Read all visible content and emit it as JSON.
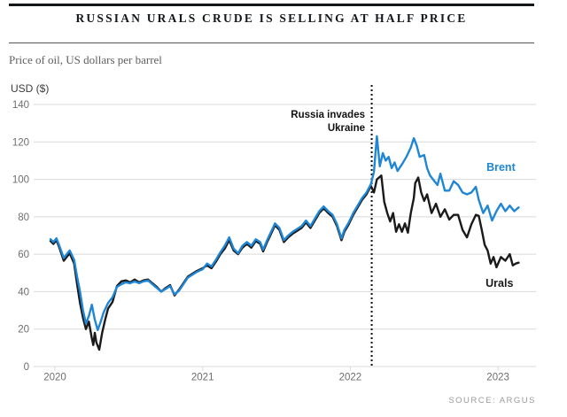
{
  "header": {
    "title": "RUSSIAN URALS CRUDE IS SELLING AT HALF PRICE",
    "subtitle": "Price of oil, US dollars per barrel"
  },
  "source": "SOURCE: ARGUS",
  "colors": {
    "brent_blue": "#1f86d6",
    "urals_black": "#1a1a1a",
    "grid": "#d9d9d9",
    "axis_text": "#6e6e6e",
    "annotation": "#111111",
    "title_text": "#14171a",
    "source_text": "#9b9b9b"
  },
  "chart_data": {
    "type": "line",
    "title": "Russian Urals crude is selling at half price",
    "xlabel": "",
    "ylabel": "USD ($)",
    "ylim": [
      0,
      140
    ],
    "yticks": [
      0,
      20,
      40,
      60,
      80,
      100,
      120,
      140
    ],
    "xticks": [
      {
        "t": 2020,
        "label": "2020"
      },
      {
        "t": 2021,
        "label": "2021"
      },
      {
        "t": 2022,
        "label": "2022"
      },
      {
        "t": 2023,
        "label": "2023"
      }
    ],
    "grid": true,
    "legend_position": "inline-labels",
    "annotation": {
      "line1": "Russia invades",
      "line2": "Ukraine",
      "t": 2022.145
    },
    "series": [
      {
        "name": "Urals",
        "color": "#1a1a1a",
        "label_pos": {
          "t": 2023.01,
          "v": 42.5
        },
        "points": [
          [
            2019.97,
            67
          ],
          [
            2019.99,
            65.5
          ],
          [
            2020.01,
            67.5
          ],
          [
            2020.03,
            63.5
          ],
          [
            2020.06,
            56.5
          ],
          [
            2020.08,
            58.5
          ],
          [
            2020.1,
            60.5
          ],
          [
            2020.13,
            55
          ],
          [
            2020.15,
            44
          ],
          [
            2020.17,
            34
          ],
          [
            2020.19,
            26
          ],
          [
            2020.21,
            20
          ],
          [
            2020.23,
            24
          ],
          [
            2020.25,
            15
          ],
          [
            2020.26,
            11.5
          ],
          [
            2020.27,
            18
          ],
          [
            2020.28,
            13
          ],
          [
            2020.3,
            9
          ],
          [
            2020.32,
            18
          ],
          [
            2020.34,
            25
          ],
          [
            2020.36,
            31
          ],
          [
            2020.39,
            34.5
          ],
          [
            2020.42,
            43
          ],
          [
            2020.45,
            45.5
          ],
          [
            2020.48,
            46
          ],
          [
            2020.51,
            45
          ],
          [
            2020.54,
            46.5
          ],
          [
            2020.57,
            45
          ],
          [
            2020.6,
            46
          ],
          [
            2020.63,
            46.5
          ],
          [
            2020.66,
            44.5
          ],
          [
            2020.69,
            42.5
          ],
          [
            2020.72,
            40
          ],
          [
            2020.75,
            42
          ],
          [
            2020.78,
            43.5
          ],
          [
            2020.81,
            38
          ],
          [
            2020.84,
            41
          ],
          [
            2020.87,
            44.5
          ],
          [
            2020.9,
            48
          ],
          [
            2020.93,
            49.5
          ],
          [
            2020.96,
            51
          ],
          [
            2021.0,
            52.5
          ],
          [
            2021.03,
            54
          ],
          [
            2021.06,
            52.5
          ],
          [
            2021.09,
            56
          ],
          [
            2021.12,
            60
          ],
          [
            2021.15,
            63
          ],
          [
            2021.18,
            67.5
          ],
          [
            2021.21,
            62
          ],
          [
            2021.24,
            60
          ],
          [
            2021.27,
            63.5
          ],
          [
            2021.3,
            65.5
          ],
          [
            2021.33,
            63.5
          ],
          [
            2021.36,
            67
          ],
          [
            2021.39,
            65.5
          ],
          [
            2021.41,
            61.5
          ],
          [
            2021.44,
            67
          ],
          [
            2021.47,
            72
          ],
          [
            2021.49,
            75.5
          ],
          [
            2021.52,
            73
          ],
          [
            2021.55,
            66.5
          ],
          [
            2021.58,
            69
          ],
          [
            2021.61,
            71
          ],
          [
            2021.64,
            72.5
          ],
          [
            2021.67,
            74
          ],
          [
            2021.7,
            77
          ],
          [
            2021.73,
            74
          ],
          [
            2021.76,
            78
          ],
          [
            2021.79,
            82
          ],
          [
            2021.82,
            84.5
          ],
          [
            2021.85,
            82
          ],
          [
            2021.88,
            80
          ],
          [
            2021.91,
            75
          ],
          [
            2021.94,
            67.5
          ],
          [
            2021.96,
            72
          ],
          [
            2021.99,
            76
          ],
          [
            2022.02,
            81
          ],
          [
            2022.05,
            85
          ],
          [
            2022.08,
            89
          ],
          [
            2022.11,
            92
          ],
          [
            2022.14,
            96.5
          ],
          [
            2022.16,
            93
          ],
          [
            2022.18,
            100
          ],
          [
            2022.21,
            102
          ],
          [
            2022.23,
            88
          ],
          [
            2022.25,
            82
          ],
          [
            2022.27,
            77.5
          ],
          [
            2022.29,
            82
          ],
          [
            2022.31,
            72
          ],
          [
            2022.33,
            76
          ],
          [
            2022.35,
            72
          ],
          [
            2022.37,
            76.5
          ],
          [
            2022.39,
            71.5
          ],
          [
            2022.41,
            82
          ],
          [
            2022.43,
            90
          ],
          [
            2022.44,
            98
          ],
          [
            2022.46,
            101
          ],
          [
            2022.48,
            93
          ],
          [
            2022.5,
            88.5
          ],
          [
            2022.52,
            92
          ],
          [
            2022.55,
            82
          ],
          [
            2022.58,
            87
          ],
          [
            2022.61,
            80
          ],
          [
            2022.64,
            84
          ],
          [
            2022.67,
            78.5
          ],
          [
            2022.7,
            81
          ],
          [
            2022.73,
            81
          ],
          [
            2022.76,
            73
          ],
          [
            2022.79,
            69
          ],
          [
            2022.82,
            76
          ],
          [
            2022.85,
            81
          ],
          [
            2022.87,
            80.5
          ],
          [
            2022.89,
            73
          ],
          [
            2022.91,
            65
          ],
          [
            2022.93,
            62
          ],
          [
            2022.95,
            55
          ],
          [
            2022.97,
            58.5
          ],
          [
            2022.99,
            53
          ],
          [
            2023.02,
            58.5
          ],
          [
            2023.05,
            56.5
          ],
          [
            2023.08,
            60
          ],
          [
            2023.1,
            54
          ],
          [
            2023.12,
            55
          ],
          [
            2023.14,
            55.5
          ]
        ]
      },
      {
        "name": "Brent",
        "color": "#1f86d6",
        "label_pos": {
          "t": 2023.02,
          "v": 104.5
        },
        "points": [
          [
            2019.97,
            68
          ],
          [
            2019.99,
            66.5
          ],
          [
            2020.01,
            68.5
          ],
          [
            2020.03,
            64.5
          ],
          [
            2020.06,
            58
          ],
          [
            2020.08,
            60
          ],
          [
            2020.1,
            62
          ],
          [
            2020.13,
            57
          ],
          [
            2020.15,
            48
          ],
          [
            2020.17,
            40
          ],
          [
            2020.19,
            30
          ],
          [
            2020.21,
            23
          ],
          [
            2020.23,
            27
          ],
          [
            2020.25,
            33
          ],
          [
            2020.27,
            25
          ],
          [
            2020.29,
            19.5
          ],
          [
            2020.31,
            24
          ],
          [
            2020.33,
            29
          ],
          [
            2020.36,
            34
          ],
          [
            2020.39,
            37
          ],
          [
            2020.42,
            42.5
          ],
          [
            2020.45,
            44
          ],
          [
            2020.48,
            45
          ],
          [
            2020.51,
            44.5
          ],
          [
            2020.54,
            45.5
          ],
          [
            2020.57,
            44.5
          ],
          [
            2020.6,
            45.5
          ],
          [
            2020.63,
            46
          ],
          [
            2020.66,
            44
          ],
          [
            2020.69,
            42
          ],
          [
            2020.72,
            40
          ],
          [
            2020.75,
            41.5
          ],
          [
            2020.78,
            43
          ],
          [
            2020.81,
            38.5
          ],
          [
            2020.84,
            40.5
          ],
          [
            2020.87,
            44
          ],
          [
            2020.9,
            47.5
          ],
          [
            2020.93,
            49
          ],
          [
            2020.96,
            50.5
          ],
          [
            2021.0,
            52
          ],
          [
            2021.03,
            55
          ],
          [
            2021.06,
            53.5
          ],
          [
            2021.09,
            57
          ],
          [
            2021.12,
            61
          ],
          [
            2021.15,
            64.5
          ],
          [
            2021.18,
            69
          ],
          [
            2021.21,
            63
          ],
          [
            2021.24,
            60.5
          ],
          [
            2021.27,
            64.5
          ],
          [
            2021.3,
            66.5
          ],
          [
            2021.33,
            64.5
          ],
          [
            2021.36,
            68
          ],
          [
            2021.39,
            66.5
          ],
          [
            2021.41,
            62.5
          ],
          [
            2021.44,
            68
          ],
          [
            2021.47,
            73
          ],
          [
            2021.49,
            76.5
          ],
          [
            2021.52,
            74
          ],
          [
            2021.55,
            67.5
          ],
          [
            2021.58,
            70
          ],
          [
            2021.61,
            72
          ],
          [
            2021.64,
            73.5
          ],
          [
            2021.67,
            75
          ],
          [
            2021.7,
            78
          ],
          [
            2021.73,
            75
          ],
          [
            2021.76,
            79
          ],
          [
            2021.79,
            83
          ],
          [
            2021.82,
            85.5
          ],
          [
            2021.85,
            83
          ],
          [
            2021.88,
            81
          ],
          [
            2021.91,
            76
          ],
          [
            2021.94,
            68.5
          ],
          [
            2021.96,
            73
          ],
          [
            2021.99,
            77
          ],
          [
            2022.02,
            82
          ],
          [
            2022.05,
            86
          ],
          [
            2022.08,
            90
          ],
          [
            2022.11,
            93
          ],
          [
            2022.14,
            97.5
          ],
          [
            2022.16,
            104
          ],
          [
            2022.18,
            123
          ],
          [
            2022.2,
            107
          ],
          [
            2022.22,
            114
          ],
          [
            2022.24,
            110
          ],
          [
            2022.26,
            112
          ],
          [
            2022.28,
            106
          ],
          [
            2022.3,
            109
          ],
          [
            2022.32,
            104.5
          ],
          [
            2022.35,
            108
          ],
          [
            2022.38,
            112
          ],
          [
            2022.41,
            117
          ],
          [
            2022.43,
            122
          ],
          [
            2022.45,
            118
          ],
          [
            2022.47,
            112
          ],
          [
            2022.5,
            113
          ],
          [
            2022.52,
            106
          ],
          [
            2022.54,
            102
          ],
          [
            2022.57,
            99
          ],
          [
            2022.59,
            97
          ],
          [
            2022.61,
            103
          ],
          [
            2022.64,
            94
          ],
          [
            2022.67,
            94
          ],
          [
            2022.7,
            99
          ],
          [
            2022.73,
            97
          ],
          [
            2022.76,
            93
          ],
          [
            2022.79,
            92
          ],
          [
            2022.82,
            93
          ],
          [
            2022.85,
            96
          ],
          [
            2022.87,
            89
          ],
          [
            2022.9,
            82
          ],
          [
            2022.93,
            86
          ],
          [
            2022.96,
            78
          ],
          [
            2022.99,
            83
          ],
          [
            2023.02,
            87
          ],
          [
            2023.05,
            83
          ],
          [
            2023.08,
            86
          ],
          [
            2023.11,
            83
          ],
          [
            2023.14,
            85
          ]
        ]
      }
    ]
  }
}
